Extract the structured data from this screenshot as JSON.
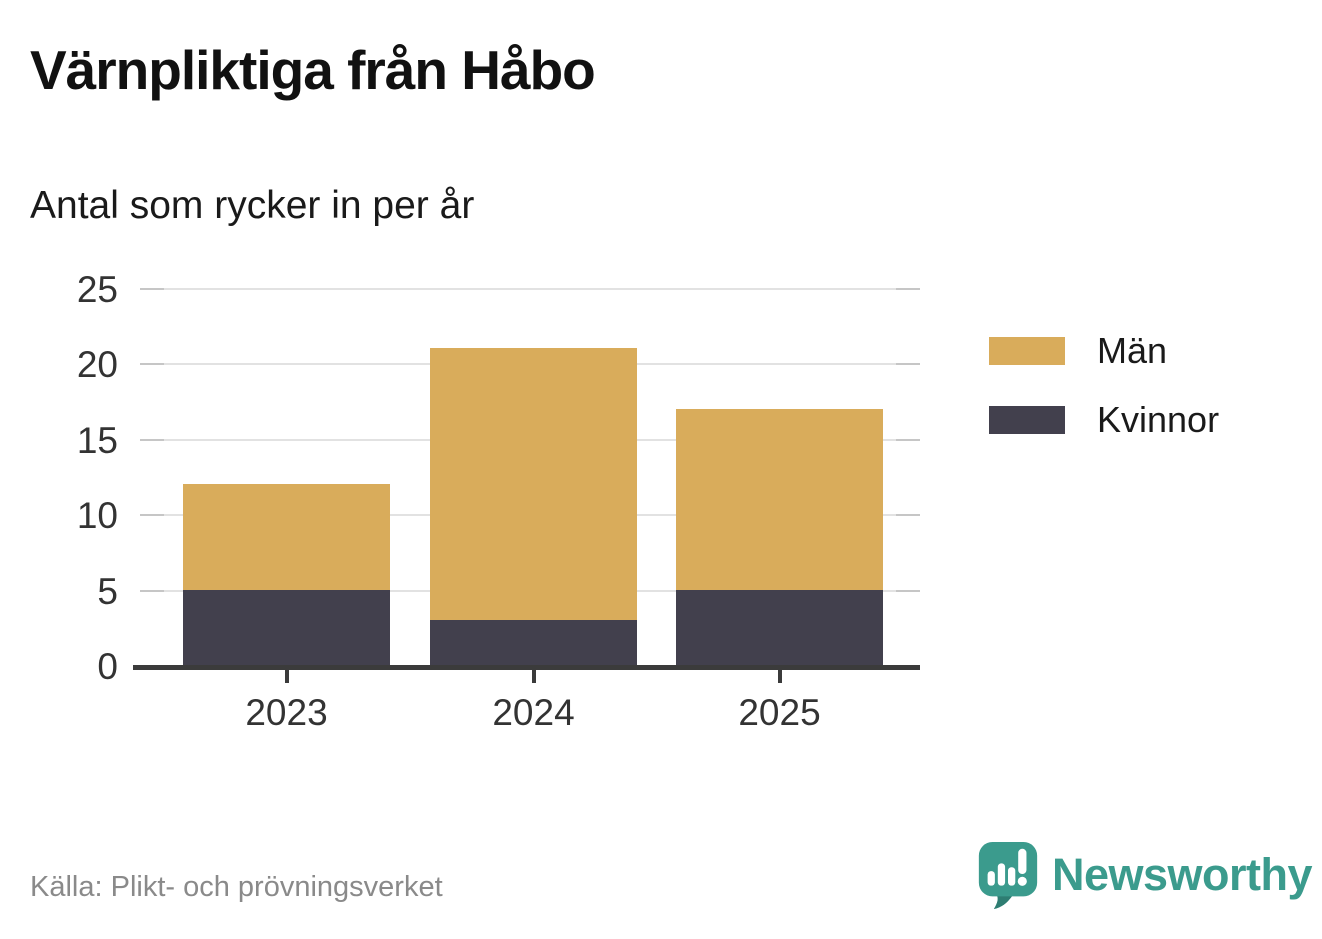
{
  "header": {
    "title": "Värnpliktiga från Håbo",
    "subtitle": "Antal som rycker in per år"
  },
  "chart_data": {
    "type": "bar",
    "stacked": true,
    "title": "Värnpliktiga från Håbo",
    "subtitle": "Antal som rycker in per år",
    "categories": [
      "2023",
      "2024",
      "2025"
    ],
    "series": [
      {
        "name": "Kvinnor",
        "color": "#42404D",
        "values": [
          5,
          3,
          5
        ]
      },
      {
        "name": "Män",
        "color": "#D9AC5B",
        "values": [
          7,
          18,
          12
        ]
      }
    ],
    "totals": [
      12,
      21,
      17
    ],
    "xlabel": "",
    "ylabel": "",
    "ylim": [
      0,
      25
    ],
    "yticks": [
      0,
      5,
      10,
      15,
      20,
      25
    ],
    "grid": true,
    "legend_position": "right",
    "legend": [
      {
        "label": "Män",
        "color": "#D9AC5B"
      },
      {
        "label": "Kvinnor",
        "color": "#42404D"
      }
    ]
  },
  "footer": {
    "source": "Källa: Plikt- och prövningsverket",
    "brand": "Newsworthy"
  },
  "colors": {
    "men": "#D9AC5B",
    "women": "#42404D",
    "brand_teal": "#3B9B8D",
    "brand_teal_dark": "#2E7D72",
    "grid": "#e2e2e2",
    "axis": "#3b3b3b",
    "source_text": "#8a8a8a"
  }
}
